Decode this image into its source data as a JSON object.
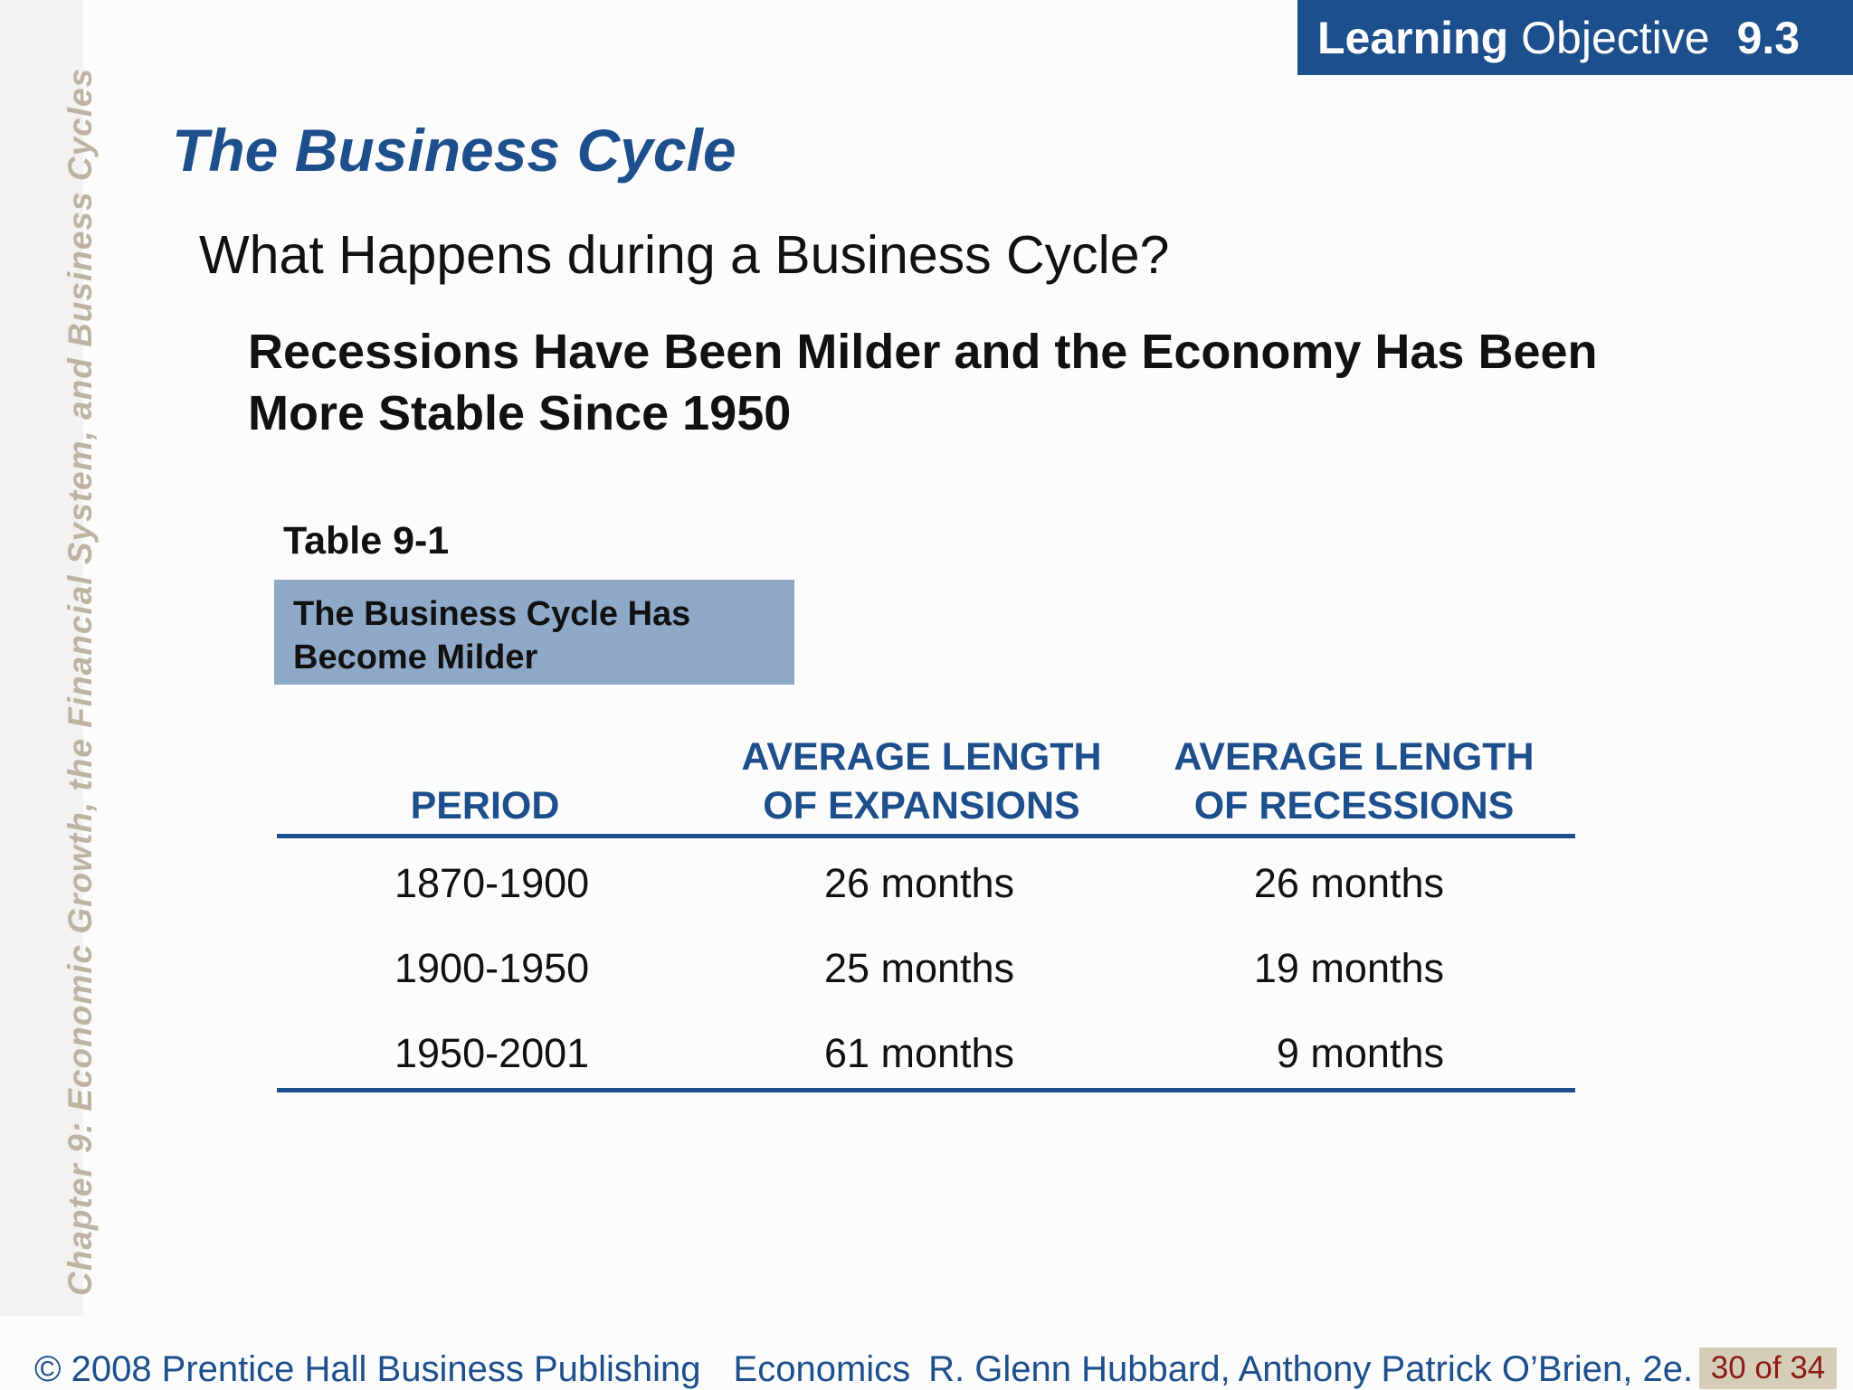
{
  "sidebar": {
    "chapter_text": "Chapter 9:  Economic Growth, the Financial System, and Business Cycles"
  },
  "learning_objective": {
    "bold_word": "Learning",
    "normal_word": "Objective",
    "number": "9.3"
  },
  "slide": {
    "title": "The Business Cycle",
    "subtitle": "What Happens during a Business Cycle?",
    "heading_line1": "Recessions Have Been Milder and the Economy Has Been",
    "heading_line2": "More Stable Since 1950"
  },
  "table": {
    "label": "Table 9-1",
    "caption_line1": "The Business Cycle Has",
    "caption_line2": "Become Milder",
    "headers": [
      {
        "line1": "",
        "line2": "PERIOD"
      },
      {
        "line1": "AVERAGE LENGTH",
        "line2": "OF EXPANSIONS"
      },
      {
        "line1": "AVERAGE LENGTH",
        "line2": "OF RECESSIONS"
      }
    ],
    "rows": [
      [
        "1870-1900",
        "26 months",
        "26 months"
      ],
      [
        "1900-1950",
        "25 months",
        "19 months"
      ],
      [
        "1950-2001",
        "61 months",
        "9 months"
      ]
    ]
  },
  "footer": {
    "copyright": "© 2008 Prentice Hall Business Publishing",
    "course": "Economics",
    "authors": "R. Glenn Hubbard, Anthony Patrick O’Brien, 2e.",
    "page": "30 of 34"
  },
  "colors": {
    "brand_blue": "#1d4f8c",
    "caption_blue": "#8ea8c7",
    "side_text": "#bdb3a3",
    "page_badge_bg": "#d6cdb8",
    "page_badge_text": "#8b1b14"
  }
}
